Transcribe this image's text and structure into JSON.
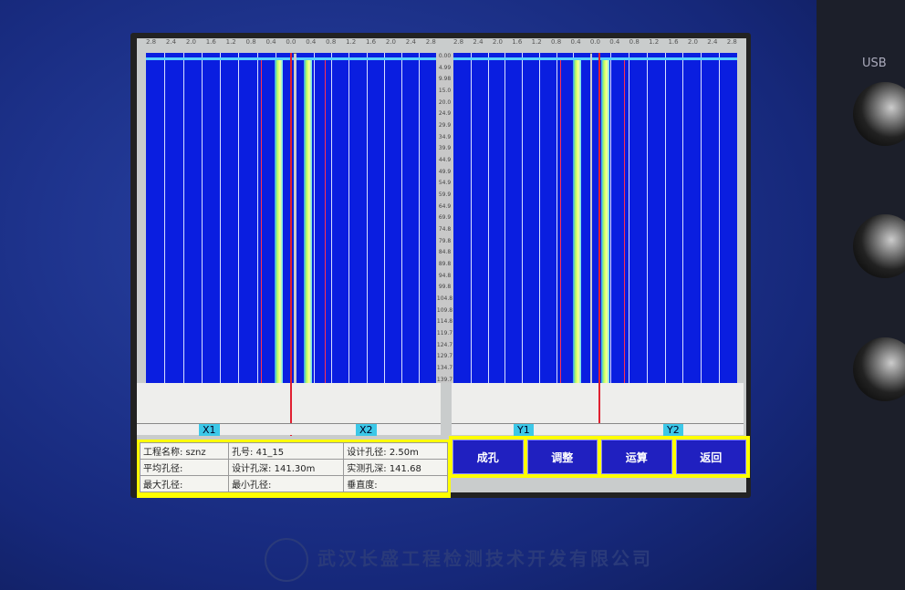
{
  "scale_ticks": [
    "2.8",
    "2.4",
    "2.0",
    "1.6",
    "1.2",
    "0.8",
    "0.4",
    "0.0",
    "0.4",
    "0.8",
    "1.2",
    "1.6",
    "2.0",
    "2.4",
    "2.8"
  ],
  "depths": [
    "0.00",
    "4.99",
    "9.98",
    "15.0",
    "20.0",
    "24.9",
    "29.9",
    "34.9",
    "39.9",
    "44.9",
    "49.9",
    "54.9",
    "59.9",
    "64.9",
    "69.9",
    "74.8",
    "79.8",
    "84.8",
    "89.8",
    "94.8",
    "99.8",
    "104.8",
    "109.8",
    "114.8",
    "119.7",
    "124.7",
    "129.7",
    "134.7",
    "139.7"
  ],
  "channels": [
    "X1",
    "X2",
    "Y1",
    "Y2"
  ],
  "info": {
    "project_name": "工程名称: sznz",
    "hole_no": "孔号: 41_15",
    "design_diameter": "设计孔径: 2.50m",
    "avg_diameter": "平均孔径:",
    "design_depth": "设计孔深: 141.30m",
    "actual_depth": "实测孔深: 141.68",
    "max_diameter": "最大孔径:",
    "min_diameter": "最小孔径:",
    "verticality": "垂直度:"
  },
  "buttons": [
    "成孔",
    "调整",
    "运算",
    "返回"
  ],
  "device": {
    "usb_label": "USB",
    "company": "武汉长盛工程检测技术开发有限公司"
  },
  "colors": {
    "plot_bg": "#0a1ee0",
    "trace": "#ff3050",
    "highlight": "#ffff00",
    "button": "#2020c0"
  }
}
